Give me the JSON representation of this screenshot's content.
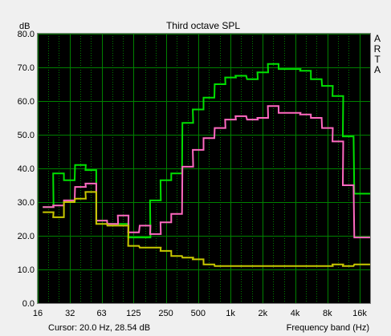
{
  "chart_data": {
    "type": "line",
    "title": "Third octave SPL",
    "ylabel": "dB",
    "xlabel": "Frequency band (Hz)",
    "ylim": [
      0,
      80
    ],
    "x_scale": "log",
    "xlim": [
      16,
      20000
    ],
    "grid": true,
    "background": "#000000",
    "grid_color": "#008000",
    "y_ticks": [
      "0.0",
      "10.0",
      "20.0",
      "30.0",
      "40.0",
      "50.0",
      "60.0",
      "70.0",
      "80.0"
    ],
    "x_ticks": [
      {
        "value": 16,
        "label": "16"
      },
      {
        "value": 32,
        "label": "32"
      },
      {
        "value": 63,
        "label": "63"
      },
      {
        "value": 125,
        "label": "125"
      },
      {
        "value": 250,
        "label": "250"
      },
      {
        "value": 500,
        "label": "500"
      },
      {
        "value": 1000,
        "label": "1k"
      },
      {
        "value": 2000,
        "label": "2k"
      },
      {
        "value": 4000,
        "label": "4k"
      },
      {
        "value": 8000,
        "label": "8k"
      },
      {
        "value": 16000,
        "label": "16k"
      }
    ],
    "x_minor_gridlines": [
      20,
      25,
      40,
      50,
      80,
      100,
      160,
      200,
      315,
      400,
      630,
      800,
      1250,
      1600,
      2500,
      3150,
      5000,
      6300,
      10000,
      12500
    ],
    "bands": [
      20,
      25,
      31.5,
      40,
      50,
      63,
      80,
      100,
      125,
      160,
      200,
      250,
      315,
      400,
      500,
      630,
      800,
      1000,
      1250,
      1600,
      2000,
      2500,
      3150,
      4000,
      5000,
      6300,
      8000,
      10000,
      12500,
      16000,
      20000
    ],
    "series": [
      {
        "color": "#00e000",
        "values": [
          28.5,
          38.5,
          36.5,
          41.0,
          39.5,
          24.5,
          23.5,
          23.5,
          19.5,
          19.5,
          30.5,
          36.5,
          38.5,
          53.5,
          57.5,
          61.0,
          65.0,
          67.0,
          67.5,
          66.5,
          68.5,
          71.0,
          69.5,
          69.5,
          69.0,
          66.5,
          64.5,
          61.5,
          49.5,
          32.5,
          32.5
        ]
      },
      {
        "color": "#ff69c0",
        "values": [
          28.5,
          29.0,
          30.5,
          34.5,
          35.5,
          24.5,
          23.5,
          26.0,
          21.0,
          23.0,
          20.5,
          24.0,
          26.5,
          40.5,
          45.5,
          49.0,
          52.0,
          54.5,
          55.5,
          54.5,
          55.0,
          58.5,
          56.5,
          56.5,
          56.0,
          55.0,
          52.0,
          48.0,
          35.0,
          19.5,
          19.5
        ]
      },
      {
        "color": "#c8c800",
        "values": [
          27.0,
          25.5,
          30.0,
          31.0,
          33.0,
          23.5,
          23.0,
          23.0,
          17.0,
          16.5,
          16.5,
          15.5,
          14.0,
          13.5,
          13.0,
          11.5,
          11.0,
          11.0,
          11.0,
          11.0,
          11.0,
          11.0,
          11.0,
          11.0,
          11.0,
          11.0,
          11.0,
          11.5,
          11.0,
          11.5,
          11.5
        ]
      }
    ]
  },
  "cursor": {
    "label": "Cursor:",
    "value": "20.0 Hz, 28.54 dB"
  },
  "watermark": [
    "A",
    "R",
    "T",
    "A"
  ]
}
